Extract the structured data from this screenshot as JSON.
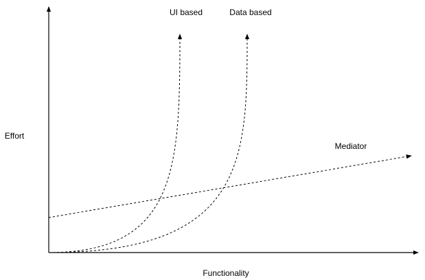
{
  "axes": {
    "x_label": "Functionality",
    "y_label": "Effort"
  },
  "curves": [
    {
      "id": "ui-based",
      "label": "UI based"
    },
    {
      "id": "data-based",
      "label": "Data based"
    },
    {
      "id": "mediator",
      "label": "Mediator"
    }
  ],
  "colors": {
    "stroke": "#000000",
    "background": "#ffffff"
  }
}
